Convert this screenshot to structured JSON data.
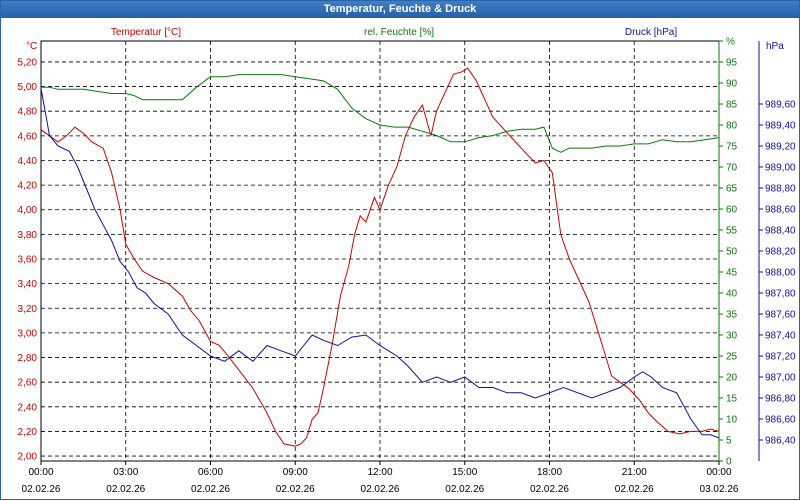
{
  "window": {
    "title": "Temperatur, Feuchte & Druck"
  },
  "chart_data": {
    "type": "line",
    "title": "Temperatur, Feuchte & Druck",
    "colors": {
      "temperature": "#cc0000",
      "humidity": "#0a7a0a",
      "pressure": "#1010a0",
      "grid": "#000000"
    },
    "x_ticks": [
      {
        "time": "00:00",
        "date": "02.02.26"
      },
      {
        "time": "03:00",
        "date": "02.02.26"
      },
      {
        "time": "06:00",
        "date": "02.02.26"
      },
      {
        "time": "09:00",
        "date": "02.02.26"
      },
      {
        "time": "12:00",
        "date": "02.02.26"
      },
      {
        "time": "15:00",
        "date": "02.02.26"
      },
      {
        "time": "18:00",
        "date": "02.02.26"
      },
      {
        "time": "21:00",
        "date": "02.02.26"
      },
      {
        "time": "00:00",
        "date": "03.02.26"
      }
    ],
    "x_range_hours": [
      0,
      24
    ],
    "axes": {
      "temperature": {
        "legend": "Temperatur [°C]",
        "unit": "°C",
        "ylim": [
          1.96,
          5.37
        ],
        "ticks": [
          "2,00",
          "2,20",
          "2,40",
          "2,60",
          "2,80",
          "3,00",
          "3,20",
          "3,40",
          "3,60",
          "3,80",
          "4,00",
          "4,20",
          "4,40",
          "4,60",
          "4,80",
          "5,00",
          "5,20"
        ]
      },
      "humidity": {
        "legend": "rel. Feuchte [%]",
        "unit": "%",
        "ylim": [
          0,
          100
        ],
        "ticks": [
          "0",
          "5",
          "10",
          "15",
          "20",
          "25",
          "30",
          "35",
          "40",
          "45",
          "50",
          "55",
          "60",
          "65",
          "70",
          "75",
          "80",
          "85",
          "90",
          "95",
          "%"
        ]
      },
      "pressure": {
        "legend": "Druck [hPa]",
        "unit": "hPa",
        "ylim": [
          986.2,
          990.2
        ],
        "ticks": [
          "986,40",
          "986,60",
          "986,80",
          "987,00",
          "987,20",
          "987,40",
          "987,60",
          "987,80",
          "988,00",
          "988,20",
          "988,40",
          "988,60",
          "988,80",
          "989,00",
          "989,20",
          "989,40",
          "989,60"
        ]
      }
    },
    "series": [
      {
        "name": "Temperatur [°C]",
        "axis": "temperature",
        "x": [
          0,
          0.3,
          0.6,
          0.9,
          1.2,
          1.5,
          1.8,
          2.2,
          2.5,
          2.8,
          3.0,
          3.3,
          3.6,
          4.0,
          4.5,
          5.0,
          5.3,
          5.6,
          6.0,
          6.3,
          6.6,
          7.0,
          7.5,
          8.0,
          8.3,
          8.6,
          9.0,
          9.2,
          9.4,
          9.6,
          9.8,
          10.0,
          10.3,
          10.6,
          10.9,
          11.1,
          11.3,
          11.5,
          11.8,
          12.0,
          12.3,
          12.6,
          12.9,
          13.2,
          13.5,
          13.8,
          14.0,
          14.3,
          14.6,
          14.9,
          15.1,
          15.4,
          15.7,
          16.0,
          16.4,
          16.8,
          17.2,
          17.5,
          17.8,
          18.1,
          18.4,
          18.7,
          19.0,
          19.4,
          19.8,
          20.2,
          20.5,
          20.8,
          21.2,
          21.5,
          21.8,
          22.2,
          22.6,
          23.0,
          23.4,
          23.7,
          24.0
        ],
        "values": [
          4.65,
          4.6,
          4.55,
          4.6,
          4.67,
          4.62,
          4.55,
          4.5,
          4.3,
          4.0,
          3.72,
          3.6,
          3.5,
          3.45,
          3.4,
          3.3,
          3.18,
          3.1,
          2.93,
          2.9,
          2.82,
          2.7,
          2.55,
          2.35,
          2.2,
          2.1,
          2.08,
          2.1,
          2.15,
          2.3,
          2.35,
          2.55,
          2.9,
          3.3,
          3.55,
          3.8,
          3.95,
          3.9,
          4.1,
          4.0,
          4.2,
          4.35,
          4.6,
          4.75,
          4.85,
          4.6,
          4.8,
          4.95,
          5.1,
          5.12,
          5.15,
          5.05,
          4.9,
          4.75,
          4.65,
          4.55,
          4.45,
          4.38,
          4.4,
          4.3,
          3.8,
          3.6,
          3.45,
          3.25,
          2.95,
          2.65,
          2.6,
          2.55,
          2.45,
          2.35,
          2.28,
          2.2,
          2.18,
          2.2,
          2.2,
          2.22,
          2.2
        ]
      },
      {
        "name": "rel. Feuchte [%]",
        "axis": "humidity",
        "x": [
          0,
          0.3,
          0.6,
          1.0,
          1.5,
          2.0,
          2.5,
          3.0,
          3.3,
          3.6,
          4.0,
          4.5,
          5.0,
          5.5,
          6.0,
          6.5,
          7.0,
          7.5,
          8.0,
          8.5,
          9.0,
          9.5,
          10.0,
          10.5,
          11.0,
          11.5,
          12.0,
          12.5,
          13.0,
          13.5,
          14.0,
          14.5,
          15.0,
          15.5,
          16.0,
          16.5,
          17.0,
          17.5,
          17.8,
          18.1,
          18.4,
          18.7,
          19.0,
          19.5,
          20.0,
          20.5,
          21.0,
          21.5,
          22.0,
          22.5,
          23.0,
          23.5,
          24.0
        ],
        "values": [
          89,
          89,
          88.5,
          88.5,
          88.5,
          88,
          87.5,
          87.5,
          87,
          86,
          86,
          86,
          86,
          89,
          91.5,
          91.5,
          92,
          92,
          92,
          92,
          91.5,
          91,
          90.5,
          88.5,
          84,
          81.5,
          80,
          79.5,
          79.5,
          78.5,
          77.5,
          76,
          76,
          77,
          77.5,
          78.5,
          79,
          79,
          79.5,
          74.5,
          73.5,
          74.5,
          74.5,
          74.5,
          75,
          75,
          75.5,
          75.5,
          76.5,
          76,
          76,
          76.5,
          77
        ]
      },
      {
        "name": "Druck [hPa]",
        "axis": "pressure",
        "x": [
          0,
          0.3,
          0.6,
          1.0,
          1.3,
          1.6,
          1.9,
          2.2,
          2.5,
          2.8,
          3.1,
          3.4,
          3.7,
          4.0,
          4.5,
          5.0,
          5.5,
          6.0,
          6.5,
          7.0,
          7.5,
          8.0,
          8.5,
          9.0,
          9.3,
          9.6,
          10.0,
          10.5,
          11.0,
          11.5,
          12.0,
          12.3,
          12.6,
          13.0,
          13.5,
          14.0,
          14.5,
          15.0,
          15.5,
          16.0,
          16.5,
          17.0,
          17.5,
          18.0,
          18.5,
          19.0,
          19.5,
          20.0,
          20.5,
          21.0,
          21.3,
          21.6,
          22.0,
          22.5,
          23.0,
          23.4,
          23.7,
          24.0
        ],
        "values": [
          989.75,
          989.3,
          989.2,
          989.15,
          989.0,
          988.8,
          988.6,
          988.45,
          988.3,
          988.1,
          988.0,
          987.85,
          987.8,
          987.7,
          987.6,
          987.4,
          987.3,
          987.2,
          987.15,
          987.25,
          987.15,
          987.3,
          987.25,
          987.2,
          987.3,
          987.4,
          987.35,
          987.3,
          987.38,
          987.4,
          987.3,
          987.25,
          987.2,
          987.1,
          986.95,
          987.0,
          986.95,
          987.0,
          986.9,
          986.9,
          986.85,
          986.85,
          986.8,
          986.85,
          986.9,
          986.85,
          986.8,
          986.85,
          986.9,
          987.0,
          987.05,
          987.0,
          986.9,
          986.85,
          986.6,
          986.45,
          986.45,
          986.42
        ]
      }
    ]
  }
}
